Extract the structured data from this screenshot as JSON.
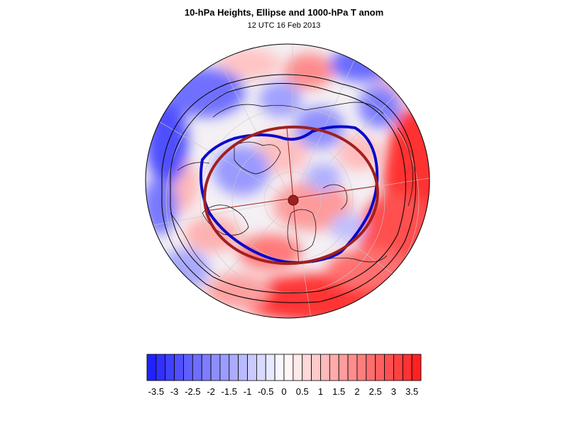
{
  "title": "10-hPa Heights, Ellipse and 1000-hPa T anom",
  "subtitle": "12 UTC 16 Feb 2013",
  "colors": {
    "negative_strong": "#1a1aff",
    "positive_strong": "#ff1a1a",
    "height_contour": "#0a0acc",
    "ellipse": "#a02020",
    "outline": "#000000"
  },
  "map": {
    "projection": "north-polar-stereographic",
    "field": "1000-hPa temperature anomaly",
    "height_contour_name": "10-hPa height contour",
    "ellipse_name": "vortex-fit-ellipse",
    "center_marker_name": "ellipse-center"
  },
  "colorbar": {
    "min": -3.75,
    "max": 3.75,
    "step": 0.25,
    "tick_labels": [
      "-3.5",
      "-3",
      "-2.5",
      "-2",
      "-1.5",
      "-1",
      "-0.5",
      "0",
      "0.5",
      "1",
      "1.5",
      "2",
      "2.5",
      "3",
      "3.5"
    ],
    "tick_values": [
      -3.5,
      -3,
      -2.5,
      -2,
      -1.5,
      -1,
      -0.5,
      0,
      0.5,
      1,
      1.5,
      2,
      2.5,
      3,
      3.5
    ]
  }
}
